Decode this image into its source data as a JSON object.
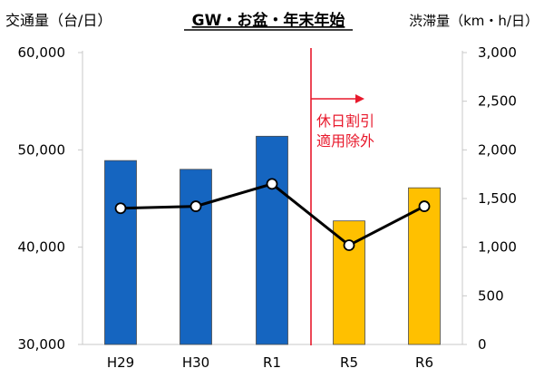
{
  "chart_data": {
    "type": "bar+line",
    "title": "GW・お盆・年末年始",
    "categories": [
      "H29",
      "H30",
      "R1",
      "R5",
      "R6"
    ],
    "left_axis": {
      "label": "交通量（台/日）",
      "min": 30000,
      "max": 60000,
      "ticks": [
        "30,000",
        "40,000",
        "50,000",
        "60,000"
      ],
      "tick_values": [
        30000,
        40000,
        50000,
        60000
      ]
    },
    "right_axis": {
      "label": "渋滞量（km・h/日）",
      "min": 0,
      "max": 3000,
      "ticks": [
        "0",
        "500",
        "1,000",
        "1,500",
        "2,000",
        "2,500",
        "3,000"
      ],
      "tick_values": [
        0,
        500,
        1000,
        1500,
        2000,
        2500,
        3000
      ]
    },
    "bar_series": {
      "axis": "left",
      "values": [
        48900,
        48000,
        51400,
        42700,
        46100
      ],
      "colors": [
        "#1565c0",
        "#1565c0",
        "#1565c0",
        "#ffc000",
        "#ffc000"
      ]
    },
    "line_series": {
      "axis": "right",
      "values": [
        1400,
        1420,
        1650,
        1020,
        1420
      ],
      "color": "#000000"
    },
    "annotation": {
      "lines": [
        "休日割引",
        "適用除外"
      ],
      "color": "#e8192c",
      "divider_between": [
        "R1",
        "R5"
      ]
    },
    "grid": false
  }
}
